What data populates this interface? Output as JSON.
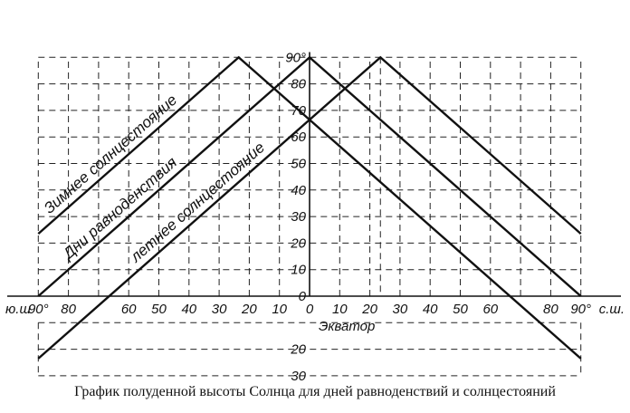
{
  "chart_data": {
    "type": "line",
    "title": "",
    "caption": "График полуденной высоты Солнца для дней равноденствий и солнцестояний",
    "x_axis": {
      "left_label": "ю.ш",
      "right_label": "с.ш.",
      "center_label": "Экватор",
      "range": [
        -90,
        90
      ],
      "tick_labels": [
        {
          "value": -90,
          "label": "90°"
        },
        {
          "value": -80,
          "label": "80"
        },
        {
          "value": -60,
          "label": "60"
        },
        {
          "value": -50,
          "label": "50"
        },
        {
          "value": -40,
          "label": "40"
        },
        {
          "value": -30,
          "label": "30"
        },
        {
          "value": -20,
          "label": "20"
        },
        {
          "value": -10,
          "label": "10"
        },
        {
          "value": 0,
          "label": "0"
        },
        {
          "value": 10,
          "label": "10"
        },
        {
          "value": 20,
          "label": "20"
        },
        {
          "value": 30,
          "label": "30"
        },
        {
          "value": 40,
          "label": "40"
        },
        {
          "value": 50,
          "label": "50"
        },
        {
          "value": 60,
          "label": "60"
        },
        {
          "value": 80,
          "label": "80"
        },
        {
          "value": 90,
          "label": "90°"
        }
      ]
    },
    "y_axis": {
      "range": [
        -30,
        90
      ],
      "tick_labels": [
        {
          "value": 90,
          "label": "90°"
        },
        {
          "value": 80,
          "label": "80"
        },
        {
          "value": 70,
          "label": "70"
        },
        {
          "value": 60,
          "label": "60"
        },
        {
          "value": 50,
          "label": "50"
        },
        {
          "value": 40,
          "label": "40"
        },
        {
          "value": 30,
          "label": "30"
        },
        {
          "value": 20,
          "label": "20"
        },
        {
          "value": 10,
          "label": "10"
        },
        {
          "value": 0,
          "label": "0"
        },
        {
          "value": -20,
          "label": "20"
        },
        {
          "value": -30,
          "label": "30"
        }
      ]
    },
    "grid": true,
    "series": [
      {
        "name": "Зимнее солнцестояние",
        "x": [
          -90,
          -23.5,
          90
        ],
        "y": [
          23.5,
          90,
          -23.5
        ]
      },
      {
        "name": "Дни равноденствия",
        "x": [
          -90,
          0,
          90
        ],
        "y": [
          0,
          90,
          0
        ]
      },
      {
        "name": "летнее солнцестояние",
        "x": [
          -90,
          23.5,
          90
        ],
        "y": [
          -23.5,
          90,
          23.5
        ]
      }
    ]
  }
}
